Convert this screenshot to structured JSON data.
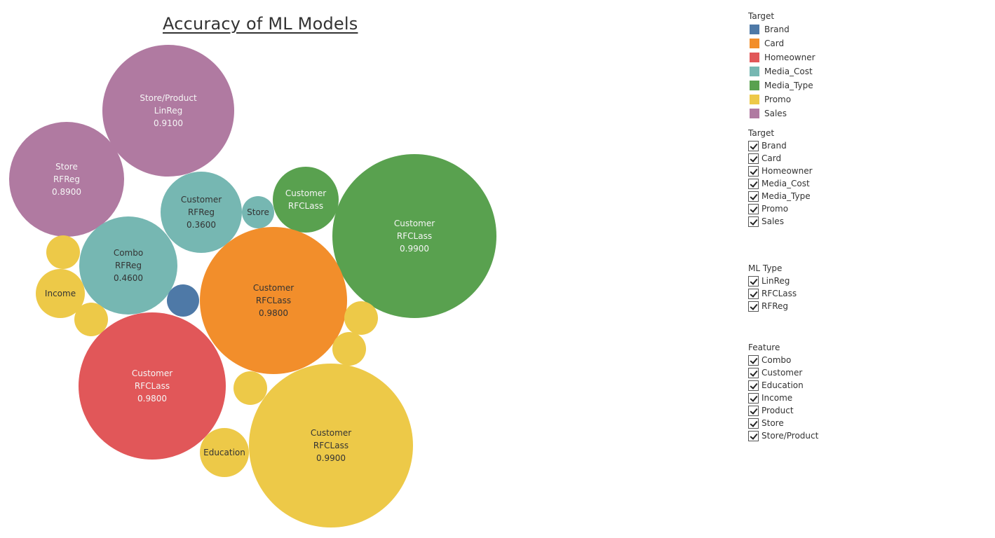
{
  "chart_data": {
    "type": "packed-bubble",
    "title": "Accuracy of ML Models",
    "bubbles": [
      {
        "target": "Sales",
        "feature": "Store/Product",
        "ml_type": "LinReg",
        "value": 0.91,
        "label": [
          "Store/Product",
          "LinReg",
          "0.9100"
        ]
      },
      {
        "target": "Sales",
        "feature": "Store",
        "ml_type": "RFReg",
        "value": 0.89,
        "label": [
          "Store",
          "RFReg",
          "0.8900"
        ]
      },
      {
        "target": "Media_Cost",
        "feature": "Customer",
        "ml_type": "RFReg",
        "value": 0.36,
        "label": [
          "Customer",
          "RFReg",
          "0.3600"
        ]
      },
      {
        "target": "Media_Cost",
        "feature": "Store",
        "ml_type": "",
        "value": null,
        "label": [
          "Store"
        ]
      },
      {
        "target": "Media_Type",
        "feature": "Customer",
        "ml_type": "RFCLass",
        "value": null,
        "label": [
          "Customer",
          "RFCLass"
        ]
      },
      {
        "target": "Media_Type",
        "feature": "Customer",
        "ml_type": "RFCLass",
        "value": 0.99,
        "label": [
          "Customer",
          "RFCLass",
          "0.9900"
        ]
      },
      {
        "target": "Media_Cost",
        "feature": "Combo",
        "ml_type": "RFReg",
        "value": 0.46,
        "label": [
          "Combo",
          "RFReg",
          "0.4600"
        ]
      },
      {
        "target": "Promo",
        "feature": "",
        "ml_type": "",
        "value": null,
        "label": []
      },
      {
        "target": "Promo",
        "feature": "Income",
        "ml_type": "",
        "value": null,
        "label": [
          "Income"
        ]
      },
      {
        "target": "Promo",
        "feature": "",
        "ml_type": "",
        "value": null,
        "label": []
      },
      {
        "target": "Brand",
        "feature": "",
        "ml_type": "",
        "value": null,
        "label": []
      },
      {
        "target": "Card",
        "feature": "Customer",
        "ml_type": "RFCLass",
        "value": 0.98,
        "label": [
          "Customer",
          "RFCLass",
          "0.9800"
        ]
      },
      {
        "target": "Promo",
        "feature": "",
        "ml_type": "",
        "value": null,
        "label": []
      },
      {
        "target": "Promo",
        "feature": "",
        "ml_type": "",
        "value": null,
        "label": []
      },
      {
        "target": "Homeowner",
        "feature": "Customer",
        "ml_type": "RFCLass",
        "value": 0.98,
        "label": [
          "Customer",
          "RFCLass",
          "0.9800"
        ]
      },
      {
        "target": "Promo",
        "feature": "",
        "ml_type": "",
        "value": null,
        "label": []
      },
      {
        "target": "Promo",
        "feature": "Education",
        "ml_type": "",
        "value": null,
        "label": [
          "Education"
        ]
      },
      {
        "target": "Promo",
        "feature": "Customer",
        "ml_type": "RFCLass",
        "value": 0.99,
        "label": [
          "Customer",
          "RFCLass",
          "0.9900"
        ]
      }
    ]
  },
  "colors": {
    "Brand": "#4e79a7",
    "Card": "#f28e2b",
    "Homeowner": "#e15759",
    "Media_Cost": "#76b7b2",
    "Media_Type": "#59a14f",
    "Promo": "#edc948",
    "Sales": "#b07aa1"
  },
  "light_label_targets": [
    "Sales",
    "Media_Type",
    "Homeowner"
  ],
  "color_legend": {
    "title": "Target",
    "items": [
      "Brand",
      "Card",
      "Homeowner",
      "Media_Cost",
      "Media_Type",
      "Promo",
      "Sales"
    ]
  },
  "filters": [
    {
      "title": "Target",
      "items": [
        "Brand",
        "Card",
        "Homeowner",
        "Media_Cost",
        "Media_Type",
        "Promo",
        "Sales"
      ]
    },
    {
      "title": "ML Type",
      "items": [
        "LinReg",
        "RFCLass",
        "RFReg"
      ]
    },
    {
      "title": "Feature",
      "items": [
        "Combo",
        "Customer",
        "Education",
        "Income",
        "Product",
        "Store",
        "Store/Product"
      ]
    }
  ]
}
